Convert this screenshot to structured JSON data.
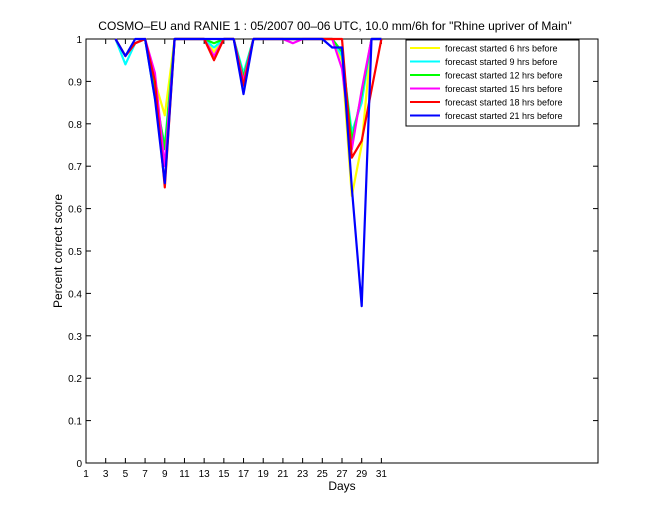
{
  "chart_data": {
    "type": "line",
    "title": "COSMO–EU and RANIE 1 : 05/2007 00–06 UTC, 10.0 mm/6h for \"Rhine upriver of Main\"",
    "xlabel": "Days",
    "ylabel": "Percent correct score",
    "xlim": [
      1,
      53
    ],
    "ylim": [
      0,
      1
    ],
    "xticks": [
      1,
      3,
      5,
      7,
      9,
      11,
      13,
      15,
      17,
      19,
      21,
      23,
      25,
      27,
      29,
      31
    ],
    "yticks": [
      0,
      0.1,
      0.2,
      0.3,
      0.4,
      0.5,
      0.6,
      0.7,
      0.8,
      0.9,
      1
    ],
    "legend_position": "top-right",
    "series": [
      {
        "name": "forecast started 6 hrs before",
        "color": "#ffff00",
        "x": [
          4,
          5,
          6,
          7,
          8,
          9,
          10,
          11,
          12,
          13,
          14,
          15,
          16,
          17,
          18,
          19,
          20,
          21,
          22,
          23,
          24,
          25,
          26,
          27,
          28,
          29,
          30,
          31
        ],
        "y": [
          1,
          0.96,
          0.99,
          1,
          0.9,
          0.82,
          1,
          1,
          1,
          1,
          0.97,
          1,
          1,
          0.89,
          1,
          1,
          1,
          1,
          1,
          1,
          1,
          1,
          1,
          0.95,
          0.63,
          0.75,
          1,
          1
        ]
      },
      {
        "name": "forecast started 9 hrs before",
        "color": "#00ffff",
        "x": [
          4,
          5,
          6,
          7,
          8,
          9,
          10,
          11,
          12,
          13,
          14,
          15,
          16,
          17,
          18,
          19,
          20,
          21,
          22,
          23,
          24,
          25,
          26,
          27,
          28,
          29,
          30,
          31
        ],
        "y": [
          1,
          0.94,
          0.99,
          1,
          0.86,
          0.75,
          1,
          1,
          1,
          1,
          0.98,
          1,
          1,
          0.92,
          1,
          1,
          1,
          1,
          1,
          1,
          1,
          1,
          1,
          0.96,
          0.78,
          0.85,
          1,
          1
        ]
      },
      {
        "name": "forecast started 12 hrs before",
        "color": "#00ff00",
        "x": [
          4,
          5,
          6,
          7,
          8,
          9,
          10,
          11,
          12,
          13,
          14,
          15,
          16,
          17,
          18,
          19,
          20,
          21,
          22,
          23,
          24,
          25,
          26,
          27,
          28,
          29,
          30,
          31
        ],
        "y": [
          1,
          0.96,
          0.99,
          1,
          0.88,
          0.74,
          1,
          1,
          1,
          1,
          0.99,
          1,
          1,
          0.91,
          1,
          1,
          1,
          1,
          1,
          1,
          1,
          1,
          1,
          0.97,
          0.76,
          0.87,
          1,
          1
        ]
      },
      {
        "name": "forecast started 15 hrs before",
        "color": "#ff00ff",
        "x": [
          4,
          5,
          6,
          7,
          8,
          9,
          10,
          11,
          12,
          13,
          14,
          15,
          16,
          17,
          18,
          19,
          20,
          21,
          22,
          23,
          24,
          25,
          26,
          27,
          28,
          29,
          30,
          31
        ],
        "y": [
          1,
          0.96,
          0.99,
          1,
          0.92,
          0.7,
          1,
          1,
          1,
          1,
          0.96,
          1,
          1,
          0.9,
          1,
          1,
          1,
          1,
          0.99,
          1,
          1,
          1,
          1,
          0.93,
          0.74,
          0.88,
          1,
          1
        ]
      },
      {
        "name": "forecast started 18 hrs before",
        "color": "#ff0000",
        "x": [
          4,
          5,
          6,
          7,
          8,
          9,
          10,
          11,
          12,
          13,
          14,
          15,
          16,
          17,
          18,
          19,
          20,
          21,
          22,
          23,
          24,
          25,
          26,
          27,
          28,
          29,
          30,
          31
        ],
        "y": [
          1,
          0.96,
          0.99,
          1,
          0.9,
          0.65,
          1,
          1,
          1,
          1,
          0.95,
          1,
          1,
          0.89,
          1,
          1,
          1,
          1,
          1,
          1,
          1,
          1,
          1,
          1,
          0.72,
          0.76,
          0.88,
          1
        ]
      },
      {
        "name": "forecast started 21 hrs before",
        "color": "#0000ff",
        "x": [
          4,
          5,
          6,
          7,
          8,
          9,
          10,
          11,
          12,
          13,
          14,
          15,
          16,
          17,
          18,
          19,
          20,
          21,
          22,
          23,
          24,
          25,
          26,
          27,
          28,
          29,
          30,
          31
        ],
        "y": [
          1,
          0.96,
          1,
          1,
          0.86,
          0.66,
          1,
          1,
          1,
          1,
          1,
          1,
          1,
          0.87,
          1,
          1,
          1,
          1,
          1,
          1,
          1,
          1,
          0.98,
          0.98,
          0.65,
          0.37,
          1,
          1
        ]
      }
    ]
  }
}
